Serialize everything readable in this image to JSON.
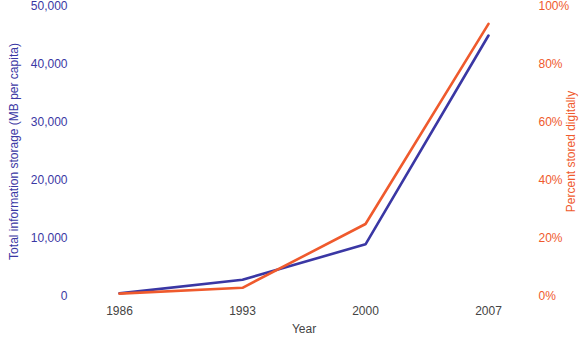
{
  "chart_data": {
    "type": "line",
    "categories": [
      "1986",
      "1993",
      "2000",
      "2007"
    ],
    "xlabel": "Year",
    "ylabel": "Total information storage (MB per capita)",
    "y2label": "Percent stored digitally",
    "ylim": [
      0,
      50000
    ],
    "yticks": [
      0,
      {
        "value": 10000,
        "label": "10,000"
      },
      {
        "value": 20000,
        "label": "20,000"
      },
      {
        "value": 30000,
        "label": "30,000"
      },
      {
        "value": 40000,
        "label": "40,000"
      },
      {
        "value": 50000,
        "label": "50,000"
      }
    ],
    "y2lim": [
      0,
      100
    ],
    "y2ticks": [
      {
        "value": 0,
        "label": "0%"
      },
      {
        "value": 20,
        "label": "20%"
      },
      {
        "value": 40,
        "label": "40%"
      },
      {
        "value": 60,
        "label": "60%"
      },
      {
        "value": 80,
        "label": "80%"
      },
      {
        "value": 100,
        "label": "100%"
      }
    ],
    "grid": false,
    "series": [
      {
        "color": "#3a37a4",
        "values": [
          540,
          2900,
          9000,
          45000
        ]
      },
      {
        "color": "#ef5a2d",
        "values": [
          1,
          3,
          25,
          94
        ],
        "axis": "y2"
      }
    ]
  }
}
